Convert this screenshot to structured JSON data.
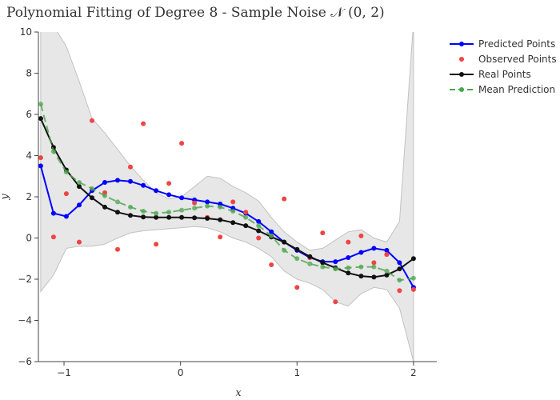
{
  "chart_data": {
    "type": "line",
    "title": "Polynomial Fitting of Degree 8 - Sample Noise 𝒩 (0, 2)",
    "xlabel": "x",
    "ylabel": "y",
    "xlim": [
      -1.22,
      2.2
    ],
    "ylim": [
      -6,
      10
    ],
    "x_ticks": [
      -1,
      0,
      1,
      2
    ],
    "x_tick_labels": [
      "−1",
      "0",
      "1",
      "2"
    ],
    "y_ticks": [
      -6,
      -4,
      -2,
      0,
      2,
      4,
      6,
      8,
      10
    ],
    "y_tick_labels": [
      "−6",
      "−4",
      "−2",
      "0",
      "2",
      "4",
      "6",
      "8",
      "10"
    ],
    "grid": false,
    "legend_position": "top-right",
    "x": [
      -1.2,
      -1.09,
      -0.98,
      -0.87,
      -0.76,
      -0.65,
      -0.54,
      -0.43,
      -0.32,
      -0.21,
      -0.1,
      0.01,
      0.12,
      0.23,
      0.34,
      0.45,
      0.56,
      0.67,
      0.78,
      0.89,
      1.0,
      1.11,
      1.22,
      1.33,
      1.44,
      1.55,
      1.66,
      1.77,
      1.88,
      2.0
    ],
    "confidence_band": {
      "upper": [
        10.5,
        10.3,
        9.3,
        7.6,
        5.8,
        5.1,
        4.3,
        3.5,
        2.8,
        2.2,
        1.9,
        2.0,
        2.5,
        3.0,
        2.9,
        2.5,
        2.2,
        1.8,
        1.0,
        0.3,
        -0.2,
        -0.6,
        -0.5,
        -0.1,
        0.3,
        0.4,
        0.0,
        -0.2,
        0.8,
        10.5
      ],
      "lower": [
        -2.6,
        -1.8,
        -0.5,
        -0.4,
        -0.4,
        -0.3,
        0.0,
        0.25,
        0.35,
        0.4,
        0.45,
        0.5,
        0.55,
        0.5,
        0.3,
        0.0,
        -0.2,
        -0.5,
        -0.9,
        -1.6,
        -2.0,
        -2.2,
        -2.5,
        -3.1,
        -3.3,
        -2.7,
        -2.4,
        -2.5,
        -3.4,
        -6.0
      ],
      "color": "#d3d3d3"
    },
    "series": [
      {
        "name": "Predicted Points",
        "style": "lines+markers",
        "color": "#0000ff",
        "values": [
          3.5,
          1.2,
          1.05,
          1.6,
          2.3,
          2.7,
          2.8,
          2.75,
          2.55,
          2.3,
          2.1,
          1.95,
          1.85,
          1.75,
          1.65,
          1.45,
          1.2,
          0.8,
          0.3,
          -0.2,
          -0.6,
          -0.95,
          -1.15,
          -1.15,
          -0.95,
          -0.7,
          -0.5,
          -0.6,
          -1.2,
          -2.4
        ]
      },
      {
        "name": "Observed Points",
        "style": "markers",
        "color": "#ef4444",
        "values": [
          3.9,
          0.05,
          2.15,
          -0.2,
          5.7,
          2.2,
          -0.55,
          3.45,
          5.55,
          -0.3,
          2.65,
          4.6,
          1.7,
          1.0,
          0.05,
          1.75,
          1.25,
          0.0,
          -1.3,
          1.9,
          -2.4,
          -0.95,
          0.25,
          -3.1,
          -0.2,
          0.1,
          -1.2,
          -0.8,
          -2.55,
          -2.5
        ]
      },
      {
        "name": "Real Points",
        "style": "lines+markers",
        "color": "#111111",
        "values": [
          5.8,
          4.4,
          3.3,
          2.5,
          1.95,
          1.5,
          1.25,
          1.1,
          1.02,
          1.0,
          1.0,
          1.0,
          0.98,
          0.95,
          0.88,
          0.75,
          0.6,
          0.35,
          0.05,
          -0.2,
          -0.55,
          -0.9,
          -1.2,
          -1.45,
          -1.7,
          -1.85,
          -1.9,
          -1.8,
          -1.5,
          -1.0
        ]
      },
      {
        "name": "Mean Prediction",
        "style": "dash+markers",
        "color": "#4ca64c",
        "values": [
          6.5,
          4.2,
          3.2,
          2.7,
          2.4,
          2.05,
          1.75,
          1.5,
          1.3,
          1.2,
          1.25,
          1.35,
          1.45,
          1.55,
          1.5,
          1.3,
          1.0,
          0.6,
          0.1,
          -0.6,
          -1.0,
          -1.25,
          -1.4,
          -1.5,
          -1.45,
          -1.4,
          -1.4,
          -1.6,
          -2.05,
          -1.95
        ]
      }
    ]
  }
}
